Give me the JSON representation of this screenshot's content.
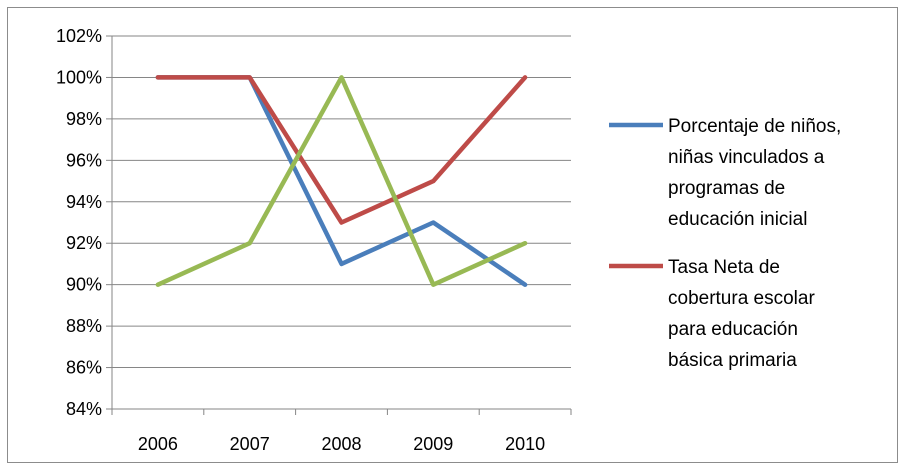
{
  "chart_data": {
    "type": "line",
    "title": "",
    "xlabel": "",
    "ylabel": "",
    "categories": [
      "2006",
      "2007",
      "2008",
      "2009",
      "2010"
    ],
    "ylim": [
      84,
      102
    ],
    "yticks": [
      84,
      86,
      88,
      90,
      92,
      94,
      96,
      98,
      100,
      102
    ],
    "ytick_labels": [
      "84%",
      "86%",
      "88%",
      "90%",
      "92%",
      "94%",
      "96%",
      "98%",
      "100%",
      "102%"
    ],
    "grid": "horizontal",
    "legend_position": "right",
    "series": [
      {
        "name": "Porcentaje de niños, niñas vinculados a programas de educación inicial",
        "legend_lines": [
          "Porcentaje de niños,",
          "niñas vinculados a",
          "programas de",
          "educación inicial"
        ],
        "color": "#4a7ebb",
        "values": [
          100,
          100,
          91,
          93,
          90
        ],
        "show_in_legend": true
      },
      {
        "name": "Tasa Neta de cobertura escolar para educación básica primaria",
        "legend_lines": [
          "Tasa Neta de",
          "cobertura escolar",
          "para educación",
          "básica primaria"
        ],
        "color": "#be4b48",
        "values": [
          100,
          100,
          93,
          95,
          100
        ],
        "show_in_legend": true
      },
      {
        "color": "#98b954",
        "values": [
          90,
          92,
          100,
          90,
          92
        ],
        "show_in_legend": false
      }
    ]
  }
}
